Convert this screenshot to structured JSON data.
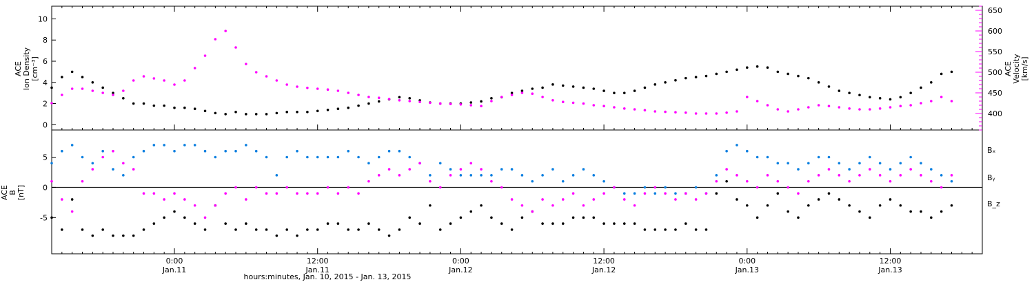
{
  "colors": {
    "black": "#000000",
    "magenta": "#ff00ff",
    "blue": "#0a7fe0",
    "zero_line": "#000000"
  },
  "chart_data": [
    {
      "type": "scatter",
      "panel": "top",
      "ylabel_lines": [
        "ACE",
        "Ion Density",
        "[cm⁻³]"
      ],
      "ylabel_right_lines": [
        "ACE",
        "Velocity",
        "[km/s]"
      ],
      "ylim": [
        -0.5,
        11.2
      ],
      "ylim_right": [
        360,
        660
      ],
      "yticks": [
        0,
        2,
        4,
        6,
        8,
        10
      ],
      "yticks_right": [
        400,
        450,
        500,
        550,
        600,
        650
      ],
      "x_range_hours": [
        0,
        91
      ],
      "series": [
        {
          "name": "Ion Density",
          "axis": "left",
          "color": "#000000",
          "x": [
            0,
            1,
            2,
            3,
            4,
            5,
            6,
            7,
            8,
            9,
            10,
            11,
            12,
            13,
            14,
            15,
            16,
            17,
            18,
            19,
            20,
            21,
            22,
            23,
            24,
            25,
            26,
            27,
            28,
            29,
            30,
            31,
            32,
            33,
            34,
            35,
            36,
            37,
            38,
            39,
            40,
            41,
            42,
            43,
            44,
            45,
            46,
            47,
            48,
            49,
            50,
            51,
            52,
            53,
            54,
            55,
            56,
            57,
            58,
            59,
            60,
            61,
            62,
            63,
            64,
            65,
            66,
            67,
            68,
            69,
            70,
            71,
            72,
            73,
            74,
            75,
            76,
            77,
            78,
            79,
            80,
            81,
            82,
            83,
            84,
            85,
            86,
            87,
            88
          ],
          "y": [
            3.5,
            4.5,
            5.0,
            4.5,
            4.0,
            3.5,
            3.0,
            2.5,
            2.0,
            2.0,
            1.8,
            1.8,
            1.6,
            1.6,
            1.5,
            1.3,
            1.1,
            1.0,
            1.2,
            1.0,
            1.0,
            1.0,
            1.1,
            1.2,
            1.2,
            1.2,
            1.3,
            1.4,
            1.5,
            1.6,
            1.8,
            2.0,
            2.2,
            2.4,
            2.6,
            2.5,
            2.3,
            2.1,
            2.0,
            2.0,
            2.0,
            2.1,
            2.2,
            2.5,
            2.6,
            3.0,
            3.2,
            3.4,
            3.5,
            3.8,
            3.7,
            3.6,
            3.5,
            3.4,
            3.2,
            3.0,
            3.0,
            3.2,
            3.5,
            3.8,
            4.0,
            4.2,
            4.4,
            4.5,
            4.6,
            4.8,
            5.0,
            5.2,
            5.4,
            5.5,
            5.4,
            5.0,
            4.8,
            4.6,
            4.4,
            4.0,
            3.6,
            3.2,
            3.0,
            2.8,
            2.6,
            2.5,
            2.4,
            2.6,
            3.0,
            3.5,
            4.0,
            4.8,
            5.0
          ]
        },
        {
          "name": "Velocity",
          "axis": "right",
          "color": "#ff00ff",
          "x": [
            0,
            1,
            2,
            3,
            4,
            5,
            6,
            7,
            8,
            9,
            10,
            11,
            12,
            13,
            14,
            15,
            16,
            17,
            18,
            19,
            20,
            21,
            22,
            23,
            24,
            25,
            26,
            27,
            28,
            29,
            30,
            31,
            32,
            33,
            34,
            35,
            36,
            37,
            38,
            39,
            40,
            41,
            42,
            43,
            44,
            45,
            46,
            47,
            48,
            49,
            50,
            51,
            52,
            53,
            54,
            55,
            56,
            57,
            58,
            59,
            60,
            61,
            62,
            63,
            64,
            65,
            66,
            67,
            68,
            69,
            70,
            71,
            72,
            73,
            74,
            75,
            76,
            77,
            78,
            79,
            80,
            81,
            82,
            83,
            84,
            85,
            86,
            87,
            88
          ],
          "y": [
            425,
            445,
            460,
            460,
            455,
            450,
            445,
            455,
            480,
            490,
            485,
            480,
            470,
            480,
            510,
            540,
            580,
            600,
            560,
            520,
            500,
            490,
            480,
            470,
            465,
            462,
            460,
            458,
            455,
            450,
            445,
            440,
            438,
            435,
            432,
            430,
            428,
            426,
            424,
            423,
            422,
            420,
            418,
            430,
            440,
            445,
            450,
            448,
            440,
            432,
            428,
            426,
            424,
            420,
            418,
            415,
            412,
            410,
            408,
            405,
            404,
            403,
            402,
            400,
            400,
            400,
            402,
            405,
            440,
            430,
            420,
            410,
            405,
            410,
            415,
            420,
            418,
            415,
            412,
            410,
            410,
            412,
            415,
            418,
            420,
            425,
            430,
            440,
            430
          ]
        }
      ]
    },
    {
      "type": "scatter",
      "panel": "bottom",
      "ylabel_lines": [
        "ACE",
        "B",
        "[nT]"
      ],
      "ylim": [
        -11,
        9.5
      ],
      "yticks": [
        -5,
        0,
        5
      ],
      "x_range_hours": [
        0,
        91
      ],
      "legend": [
        "Bₓ",
        "Bᵧ",
        "B_z"
      ],
      "legend_placement": "right",
      "series": [
        {
          "name": "Bₓ",
          "color": "#000000",
          "x": [
            0,
            1,
            2,
            3,
            4,
            5,
            6,
            7,
            8,
            9,
            10,
            11,
            12,
            13,
            14,
            15,
            16,
            17,
            18,
            19,
            20,
            21,
            22,
            23,
            24,
            25,
            26,
            27,
            28,
            29,
            30,
            31,
            32,
            33,
            34,
            35,
            36,
            37,
            38,
            39,
            40,
            41,
            42,
            43,
            44,
            45,
            46,
            47,
            48,
            49,
            50,
            51,
            52,
            53,
            54,
            55,
            56,
            57,
            58,
            59,
            60,
            61,
            62,
            63,
            64,
            65,
            66,
            67,
            68,
            69,
            70,
            71,
            72,
            73,
            74,
            75,
            76,
            77,
            78,
            79,
            80,
            81,
            82,
            83,
            84,
            85,
            86,
            87,
            88
          ],
          "y": [
            -5,
            -7,
            -2,
            -7,
            -8,
            -7,
            -8,
            -8,
            -8,
            -7,
            -6,
            -5,
            -4,
            -5,
            -6,
            -7,
            -3,
            -6,
            -7,
            -6,
            -7,
            -7,
            -8,
            -7,
            -8,
            -7,
            -7,
            -6,
            -6,
            -7,
            -7,
            -6,
            -7,
            -8,
            -7,
            -5,
            -6,
            -3,
            -7,
            -6,
            -5,
            -4,
            -3,
            -5,
            -6,
            -7,
            -5,
            -4,
            -6,
            -6,
            -6,
            -5,
            -5,
            -5,
            -6,
            -6,
            -6,
            -6,
            -7,
            -7,
            -7,
            -7,
            -6,
            -7,
            -7,
            -1,
            1,
            -2,
            -3,
            -5,
            -3,
            -1,
            -4,
            -5,
            -3,
            -2,
            -1,
            -2,
            -3,
            -4,
            -5,
            -3,
            -2,
            -3,
            -4,
            -4,
            -5,
            -4,
            -3
          ]
        },
        {
          "name": "Bᵧ",
          "color": "#0a7fe0",
          "x": [
            0,
            1,
            2,
            3,
            4,
            5,
            6,
            7,
            8,
            9,
            10,
            11,
            12,
            13,
            14,
            15,
            16,
            17,
            18,
            19,
            20,
            21,
            22,
            23,
            24,
            25,
            26,
            27,
            28,
            29,
            30,
            31,
            32,
            33,
            34,
            35,
            36,
            37,
            38,
            39,
            40,
            41,
            42,
            43,
            44,
            45,
            46,
            47,
            48,
            49,
            50,
            51,
            52,
            53,
            54,
            55,
            56,
            57,
            58,
            59,
            60,
            61,
            62,
            63,
            64,
            65,
            66,
            67,
            68,
            69,
            70,
            71,
            72,
            73,
            74,
            75,
            76,
            77,
            78,
            79,
            80,
            81,
            82,
            83,
            84,
            85,
            86,
            87,
            88
          ],
          "y": [
            4,
            6,
            7,
            5,
            4,
            6,
            3,
            2,
            5,
            6,
            7,
            7,
            6,
            7,
            7,
            6,
            5,
            6,
            6,
            7,
            6,
            5,
            2,
            5,
            6,
            5,
            5,
            5,
            5,
            6,
            5,
            4,
            5,
            6,
            6,
            5,
            4,
            2,
            4,
            3,
            2,
            2,
            2,
            2,
            3,
            3,
            2,
            1,
            2,
            3,
            1,
            2,
            3,
            2,
            1,
            0,
            -1,
            -1,
            0,
            -1,
            0,
            -1,
            -1,
            0,
            -1,
            2,
            6,
            7,
            6,
            5,
            5,
            4,
            4,
            3,
            4,
            5,
            5,
            4,
            3,
            4,
            5,
            4,
            3,
            4,
            5,
            4,
            3,
            2,
            1
          ]
        },
        {
          "name": "B_z",
          "color": "#ff00ff",
          "x": [
            0,
            1,
            2,
            3,
            4,
            5,
            6,
            7,
            8,
            9,
            10,
            11,
            12,
            13,
            14,
            15,
            16,
            17,
            18,
            19,
            20,
            21,
            22,
            23,
            24,
            25,
            26,
            27,
            28,
            29,
            30,
            31,
            32,
            33,
            34,
            35,
            36,
            37,
            38,
            39,
            40,
            41,
            42,
            43,
            44,
            45,
            46,
            47,
            48,
            49,
            50,
            51,
            52,
            53,
            54,
            55,
            56,
            57,
            58,
            59,
            60,
            61,
            62,
            63,
            64,
            65,
            66,
            67,
            68,
            69,
            70,
            71,
            72,
            73,
            74,
            75,
            76,
            77,
            78,
            79,
            80,
            81,
            82,
            83,
            84,
            85,
            86,
            87,
            88
          ],
          "y": [
            1,
            -2,
            -4,
            1,
            3,
            5,
            6,
            4,
            3,
            -1,
            -1,
            -2,
            -1,
            -2,
            -3,
            -5,
            -3,
            -1,
            0,
            -2,
            0,
            -1,
            -1,
            0,
            -1,
            -1,
            -1,
            0,
            -1,
            0,
            -1,
            1,
            2,
            3,
            2,
            3,
            4,
            1,
            0,
            2,
            3,
            4,
            3,
            1,
            0,
            -2,
            -3,
            -4,
            -2,
            -3,
            -2,
            -1,
            -3,
            -2,
            -1,
            0,
            -2,
            -3,
            -1,
            0,
            -1,
            -2,
            -1,
            -2,
            -1,
            1,
            3,
            2,
            1,
            0,
            2,
            1,
            0,
            -1,
            1,
            2,
            3,
            2,
            1,
            2,
            3,
            2,
            1,
            2,
            3,
            2,
            1,
            0,
            2
          ]
        }
      ]
    }
  ],
  "x_axis": {
    "range_hours": [
      0,
      91
    ],
    "ticks": [
      {
        "hour": 12,
        "time": "0:00",
        "date": "Jan.11"
      },
      {
        "hour": 26,
        "time": "12:00",
        "date": "Jan.11"
      },
      {
        "hour": 40,
        "time": "0:00",
        "date": "Jan.12"
      },
      {
        "hour": 54,
        "time": "12:00",
        "date": "Jan.12"
      },
      {
        "hour": 68,
        "time": "0:00",
        "date": "Jan.13"
      },
      {
        "hour": 82,
        "time": "12:00",
        "date": "Jan.13"
      }
    ],
    "title": "hours:minutes, Jan. 10, 2015 - Jan. 13, 2015"
  }
}
